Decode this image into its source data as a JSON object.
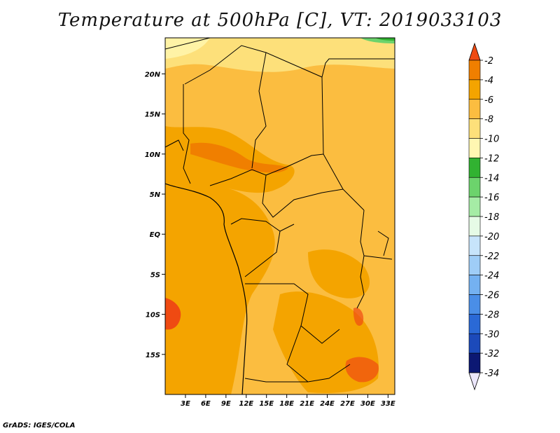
{
  "title": "Temperature at 500hPa [C], VT: 2019033103",
  "credit": "GrADS: IGES/COLA",
  "map": {
    "lon_range": [
      0,
      34
    ],
    "lat_range": [
      -20,
      24.5
    ],
    "lon_ticks": [
      {
        "value": 3,
        "label": "3E"
      },
      {
        "value": 6,
        "label": "6E"
      },
      {
        "value": 9,
        "label": "9E"
      },
      {
        "value": 12,
        "label": "12E"
      },
      {
        "value": 15,
        "label": "15E"
      },
      {
        "value": 18,
        "label": "18E"
      },
      {
        "value": 21,
        "label": "21E"
      },
      {
        "value": 24,
        "label": "24E"
      },
      {
        "value": 27,
        "label": "27E"
      },
      {
        "value": 30,
        "label": "30E"
      },
      {
        "value": 33,
        "label": "33E"
      }
    ],
    "lat_ticks": [
      {
        "value": 20,
        "label": "20N"
      },
      {
        "value": 15,
        "label": "15N"
      },
      {
        "value": 10,
        "label": "10N"
      },
      {
        "value": 5,
        "label": "5N"
      },
      {
        "value": 0,
        "label": "EQ"
      },
      {
        "value": -5,
        "label": "5S"
      },
      {
        "value": -10,
        "label": "10S"
      },
      {
        "value": -15,
        "label": "15S"
      }
    ]
  },
  "colorbar": {
    "labels": [
      "-2",
      "-4",
      "-6",
      "-8",
      "-10",
      "-12",
      "-14",
      "-16",
      "-18",
      "-20",
      "-22",
      "-24",
      "-26",
      "-28",
      "-30",
      "-32",
      "-34"
    ],
    "colors": [
      "#ef4a12",
      "#f07f00",
      "#f4a400",
      "#fbbd40",
      "#fde07a",
      "#fff7b2",
      "#31b231",
      "#6cd36c",
      "#a5eca5",
      "#e6fbe6",
      "#c7e4fb",
      "#9fcdf7",
      "#74b1f1",
      "#4a8ee7",
      "#2a69d6",
      "#1c4aba",
      "#0c1873",
      "#ebe6fb"
    ]
  }
}
